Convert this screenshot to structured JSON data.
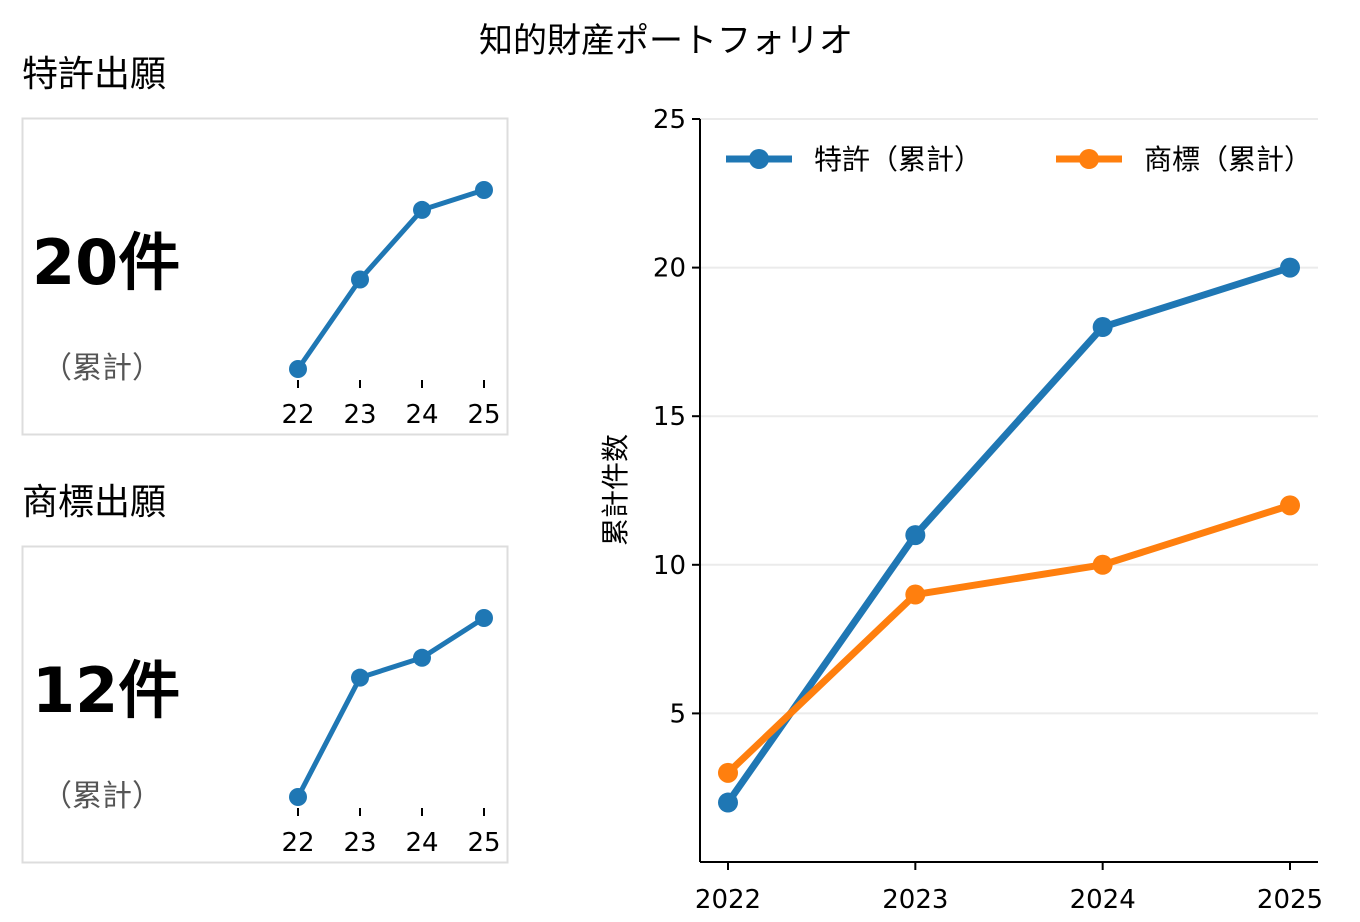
{
  "title": "知的財産ポートフォリオ",
  "colors": {
    "patent": "#1f77b4",
    "trademark": "#ff7f0e",
    "grid": "#ebebeb",
    "panel_border": "#dddddd"
  },
  "panels": [
    {
      "heading": "特許出願",
      "value_label": "20件",
      "sub_label": "（累計）",
      "x_ticks": [
        "22",
        "23",
        "24",
        "25"
      ],
      "values": [
        2,
        11,
        18,
        20
      ],
      "color_key": "patent"
    },
    {
      "heading": "商標出願",
      "value_label": "12件",
      "sub_label": "（累計）",
      "x_ticks": [
        "22",
        "23",
        "24",
        "25"
      ],
      "values": [
        3,
        9,
        10,
        12
      ],
      "color_key": "trademark_panel"
    }
  ],
  "chart_data": {
    "type": "line",
    "x": [
      2022,
      2023,
      2024,
      2025
    ],
    "x_tick_labels": [
      "2022",
      "2023",
      "2024",
      "2025"
    ],
    "ylabel": "累計件数",
    "ylim": [
      0,
      25
    ],
    "y_ticks": [
      5,
      10,
      15,
      20,
      25
    ],
    "grid": "horizontal",
    "legend": "top",
    "series": [
      {
        "name": "特許（累計）",
        "values": [
          2,
          11,
          18,
          20
        ],
        "color": "#1f77b4"
      },
      {
        "name": "商標（累計）",
        "values": [
          3,
          9,
          10,
          12
        ],
        "color": "#ff7f0e"
      }
    ]
  }
}
